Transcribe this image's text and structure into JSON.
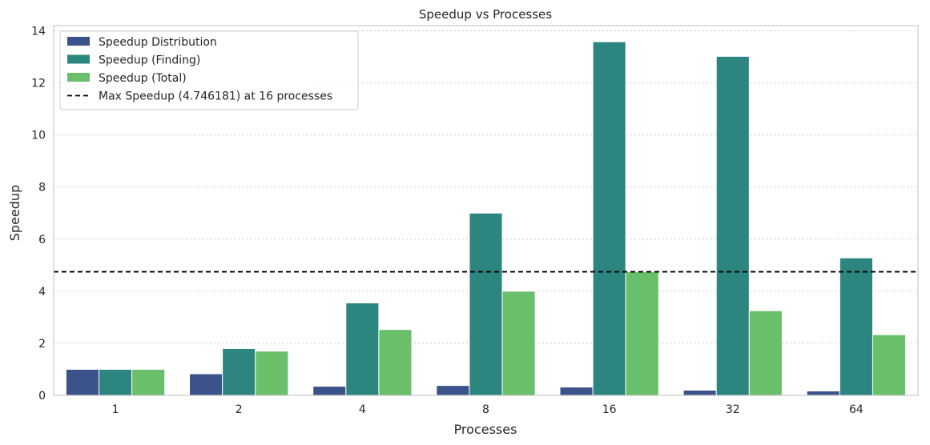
{
  "chart_data": {
    "type": "bar",
    "title": "Speedup vs Processes",
    "xlabel": "Processes",
    "ylabel": "Speedup",
    "categories": [
      "1",
      "2",
      "4",
      "8",
      "16",
      "32",
      "64"
    ],
    "ylim": [
      0,
      14.2
    ],
    "yticks": [
      0,
      2,
      4,
      6,
      8,
      10,
      12,
      14
    ],
    "grid": "horizontal dotted",
    "legend_position": "top-left",
    "series": [
      {
        "name": "Speedup Distribution",
        "color": "#3b528b",
        "values": [
          1.0,
          0.83,
          0.35,
          0.38,
          0.32,
          0.2,
          0.17
        ]
      },
      {
        "name": "Speedup (Finding)",
        "color": "#2c857e",
        "values": [
          1.0,
          1.8,
          3.55,
          7.0,
          13.58,
          13.02,
          5.28
        ]
      },
      {
        "name": "Speedup (Total)",
        "color": "#6abf6a",
        "values": [
          1.0,
          1.7,
          2.53,
          4.0,
          4.746181,
          3.25,
          2.33
        ]
      }
    ],
    "reference_line": {
      "label": "Max Speedup (4.746181) at 16 processes",
      "value": 4.746181,
      "style": "dashed",
      "color": "#000000"
    }
  }
}
